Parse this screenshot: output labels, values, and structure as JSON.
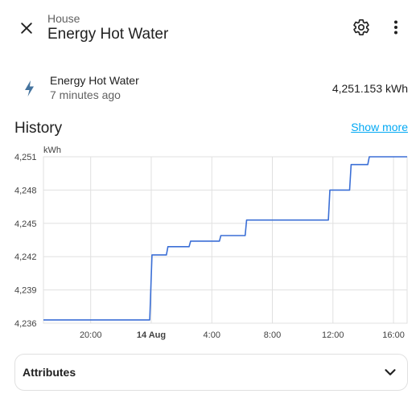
{
  "header": {
    "breadcrumb": "House",
    "title": "Energy Hot Water",
    "close_icon": "close-icon",
    "settings_icon": "gear-icon",
    "menu_icon": "more-vertical-icon"
  },
  "entity": {
    "name": "Energy Hot Water",
    "last_changed": "7 minutes ago",
    "state": "4,251.153 kWh",
    "icon": "lightning-icon",
    "icon_color": "#44739e"
  },
  "history": {
    "title": "History",
    "show_more": "Show more"
  },
  "chart_data": {
    "type": "line",
    "ylabel": "kWh",
    "unit_label": "kWh",
    "ylim": [
      4236,
      4251
    ],
    "yticks": [
      {
        "value": 4236,
        "label": "4,236"
      },
      {
        "value": 4239,
        "label": "4,239"
      },
      {
        "value": 4242,
        "label": "4,242"
      },
      {
        "value": 4245,
        "label": "4,245"
      },
      {
        "value": 4248,
        "label": "4,248"
      },
      {
        "value": 4251,
        "label": "4,251"
      }
    ],
    "xlim": [
      16.88,
      40.9
    ],
    "xticks": [
      {
        "value": 20,
        "label": "20:00",
        "bold": false
      },
      {
        "value": 24,
        "label": "14 Aug",
        "bold": true
      },
      {
        "value": 28,
        "label": "4:00",
        "bold": false
      },
      {
        "value": 32,
        "label": "8:00",
        "bold": false
      },
      {
        "value": 36,
        "label": "12:00",
        "bold": false
      },
      {
        "value": 40,
        "label": "16:00",
        "bold": false
      }
    ],
    "grid": true,
    "line_color": "#3b6fd6",
    "series": [
      {
        "step": true,
        "x": [
          16.88,
          23.9,
          24.05,
          25.0,
          25.1,
          26.5,
          26.6,
          28.5,
          28.6,
          30.2,
          30.3,
          35.7,
          35.8,
          37.1,
          37.2,
          38.3,
          38.4,
          40.9
        ],
        "y": [
          4236.3,
          4236.3,
          4242.15,
          4242.15,
          4242.9,
          4242.9,
          4243.4,
          4243.4,
          4243.9,
          4243.9,
          4245.3,
          4245.3,
          4248.0,
          4248.0,
          4250.3,
          4250.3,
          4251.0,
          4251.0
        ]
      }
    ]
  },
  "attributes": {
    "label": "Attributes",
    "chevron_icon": "chevron-down-icon"
  }
}
